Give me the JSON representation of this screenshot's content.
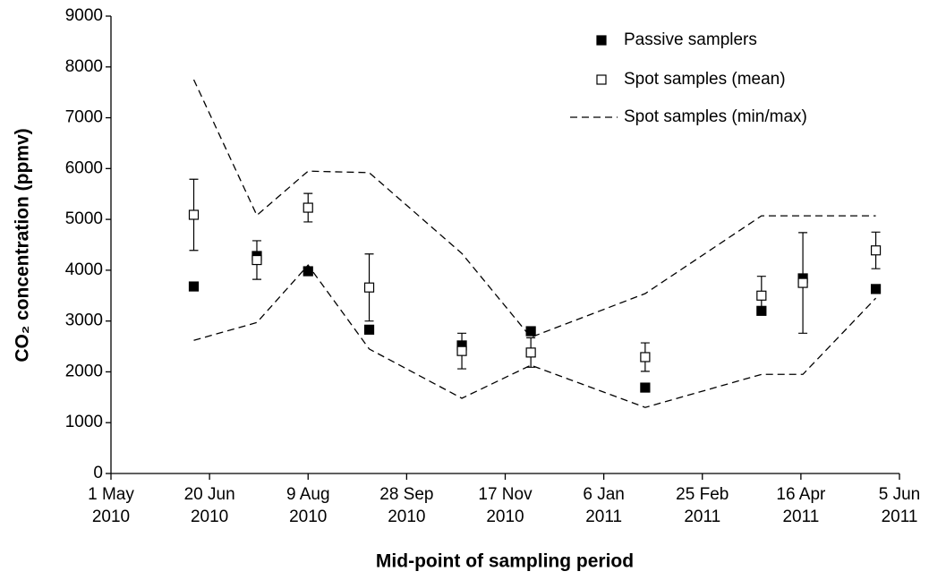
{
  "chart_data": {
    "type": "scatter",
    "x_label": "Mid-point of sampling period",
    "y_label": "CO₂ concentration (ppmv)",
    "x": [
      "2010-06-12",
      "2010-07-14",
      "2010-08-09",
      "2010-09-09",
      "2010-10-26",
      "2010-11-30",
      "2011-01-27",
      "2011-03-27",
      "2011-04-17",
      "2011-05-24"
    ],
    "series": [
      {
        "name": "Passive samplers",
        "marker": "filled-square",
        "color": "#000000",
        "values": [
          3680,
          4280,
          3980,
          2830,
          2520,
          2800,
          1690,
          3200,
          3840,
          3630
        ]
      },
      {
        "name": "Spot samples (mean)",
        "marker": "open-square",
        "color": "#000000",
        "values": [
          5090,
          4200,
          5230,
          3660,
          2410,
          2380,
          2290,
          3500,
          3750,
          4390
        ],
        "errors": [
          700,
          380,
          280,
          660,
          350,
          290,
          280,
          380,
          990,
          360
        ]
      },
      {
        "name": "Spot samples (min/max)",
        "line": "dashed",
        "color": "#000000",
        "max": [
          7750,
          5080,
          5950,
          5920,
          4330,
          2680,
          3540,
          5070,
          5070,
          5070
        ],
        "min": [
          2620,
          2970,
          4100,
          2450,
          1480,
          2130,
          1300,
          1950,
          1950,
          3450
        ]
      }
    ],
    "xlim": [
      "2010-05-01",
      "2011-06-05"
    ],
    "xticks": [
      {
        "value": "2010-05-01",
        "label": "1 May 2010"
      },
      {
        "value": "2010-06-20",
        "label": "20 Jun 2010"
      },
      {
        "value": "2010-08-09",
        "label": "9 Aug 2010"
      },
      {
        "value": "2010-09-28",
        "label": "28 Sep 2010"
      },
      {
        "value": "2010-11-17",
        "label": "17 Nov 2010"
      },
      {
        "value": "2011-01-06",
        "label": "6 Jan 2011"
      },
      {
        "value": "2011-02-25",
        "label": "25 Feb 2011"
      },
      {
        "value": "2011-04-16",
        "label": "16 Apr 2011"
      },
      {
        "value": "2011-06-05",
        "label": "5 Jun 2011"
      }
    ],
    "ylim": [
      0,
      9000
    ],
    "yticks": [
      0,
      1000,
      2000,
      3000,
      4000,
      5000,
      6000,
      7000,
      8000,
      9000
    ],
    "grid": false,
    "legend_position": "top-right"
  }
}
